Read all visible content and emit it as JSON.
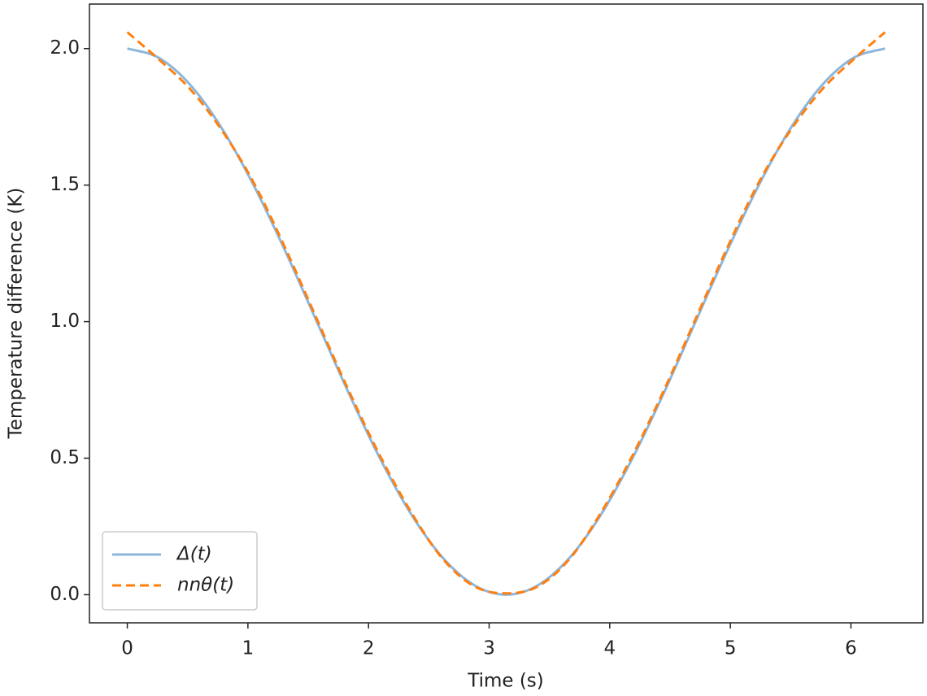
{
  "chart_data": {
    "type": "line",
    "x_label": "Time (s)",
    "y_label": "Temperature difference (K)",
    "x": [
      0,
      0.262,
      0.524,
      0.785,
      1.047,
      1.309,
      1.571,
      1.833,
      2.094,
      2.356,
      2.618,
      2.88,
      3.142,
      3.403,
      3.665,
      3.927,
      4.189,
      4.451,
      4.712,
      4.974,
      5.236,
      5.498,
      5.76,
      6.021,
      6.283
    ],
    "series": [
      {
        "name": "Δ(t)",
        "color": "#8cb6dc",
        "dash": false,
        "values": [
          2,
          1.966,
          1.866,
          1.707,
          1.5,
          1.259,
          1.0,
          0.741,
          0.5,
          0.293,
          0.134,
          0.034,
          0,
          0.034,
          0.134,
          0.293,
          0.5,
          0.741,
          1.0,
          1.259,
          1.5,
          1.707,
          1.866,
          1.966,
          2
        ]
      },
      {
        "name": "nnθ(t)",
        "color": "#ff7f0e",
        "dash": true,
        "values": [
          2.06,
          1.96,
          1.85,
          1.7,
          1.51,
          1.27,
          1.01,
          0.75,
          0.51,
          0.3,
          0.13,
          0.03,
          0.005,
          0.03,
          0.13,
          0.3,
          0.51,
          0.75,
          1.01,
          1.27,
          1.51,
          1.7,
          1.85,
          1.96,
          2.06
        ]
      }
    ],
    "xlim": [
      -0.314,
      6.597
    ],
    "ylim": [
      -0.103,
      2.163
    ],
    "xticks": [
      0,
      1,
      2,
      3,
      4,
      5,
      6
    ],
    "yticks": [
      {
        "value": 0,
        "label": "0.0"
      },
      0.5,
      {
        "value": 1,
        "label": "1.0"
      },
      1.5,
      {
        "value": 2,
        "label": "2.0"
      }
    ],
    "legend": "lower left",
    "grid": false
  }
}
